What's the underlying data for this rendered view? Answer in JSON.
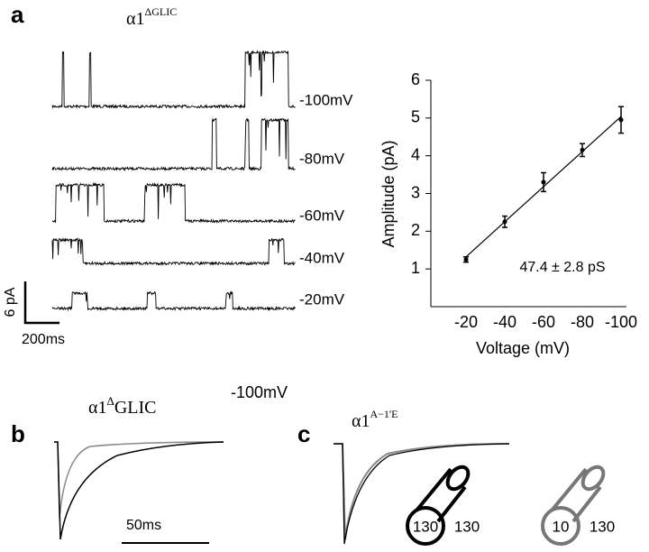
{
  "panels": {
    "a": {
      "label": "a",
      "title": "α1",
      "title_sup": "ΔGLIC",
      "traces": [
        "-100mV",
        "-80mV",
        "-60mV",
        "-40mV",
        "-20mV"
      ],
      "scale_y": "6 pA",
      "scale_x": "200ms"
    },
    "b": {
      "label": "b",
      "title": "α1",
      "title_sup": "Δ",
      "title_rest": "GLIC",
      "voltage": "-100mV",
      "scale_x": "50ms"
    },
    "c": {
      "label": "c",
      "title": "α1",
      "title_sup": "A−1'E",
      "pipettes": [
        [
          "130",
          "130"
        ],
        [
          "10",
          "130"
        ]
      ]
    }
  },
  "chart_data": {
    "type": "scatter",
    "x_label": "Voltage (mV)",
    "y_label": "Amplitude  (pA)",
    "categories": [
      "-20",
      "-40",
      "-60",
      "-80",
      "-100"
    ],
    "values": [
      1.25,
      2.25,
      3.3,
      4.15,
      4.95
    ],
    "errors": [
      0.07,
      0.15,
      0.25,
      0.17,
      0.35
    ],
    "annotation": "47.4 ± 2.8 pS",
    "color": "#000000",
    "ylim": [
      0,
      6
    ],
    "yticks": [
      1,
      2,
      3,
      4,
      5,
      6
    ]
  }
}
